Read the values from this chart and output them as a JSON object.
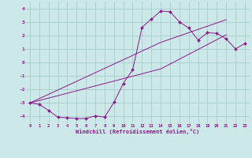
{
  "xlabel": "Windchill (Refroidissement éolien,°C)",
  "x_values": [
    0,
    1,
    2,
    3,
    4,
    5,
    6,
    7,
    8,
    9,
    10,
    11,
    12,
    13,
    14,
    15,
    16,
    17,
    18,
    19,
    20,
    21,
    22,
    23
  ],
  "line1_y": [
    -3.0,
    -3.1,
    -3.55,
    -4.05,
    -4.1,
    -4.15,
    -4.15,
    -3.95,
    -4.05,
    -2.95,
    -1.55,
    -0.55,
    2.6,
    3.2,
    3.8,
    3.75,
    3.0,
    2.55,
    1.65,
    2.2,
    2.15,
    1.75,
    1.0,
    1.4
  ],
  "line2_y": [
    -3.0,
    -2.68,
    -2.36,
    -2.04,
    -1.72,
    -1.4,
    -1.08,
    -0.76,
    -0.44,
    -0.12,
    0.2,
    0.52,
    0.84,
    1.16,
    1.48,
    1.72,
    1.96,
    2.2,
    2.44,
    2.68,
    2.92,
    3.16,
    null,
    null
  ],
  "line3_y": [
    -3.0,
    -2.82,
    -2.64,
    -2.46,
    -2.28,
    -2.1,
    -1.92,
    -1.74,
    -1.56,
    -1.38,
    -1.2,
    -1.02,
    -0.84,
    -0.66,
    -0.48,
    -0.12,
    0.24,
    0.6,
    0.96,
    1.32,
    1.68,
    2.04,
    null,
    null
  ],
  "ylim": [
    -4.5,
    4.5
  ],
  "xlim": [
    -0.5,
    23.5
  ],
  "line_color": "#8b1a8b",
  "bg_color": "#cce8e8",
  "grid_color": "#a0c8c8",
  "tick_label_color": "#8b1a8b",
  "yticks": [
    -4,
    -3,
    -2,
    -1,
    0,
    1,
    2,
    3,
    4
  ],
  "xticks": [
    0,
    1,
    2,
    3,
    4,
    5,
    6,
    7,
    8,
    9,
    10,
    11,
    12,
    13,
    14,
    15,
    16,
    17,
    18,
    19,
    20,
    21,
    22,
    23
  ]
}
